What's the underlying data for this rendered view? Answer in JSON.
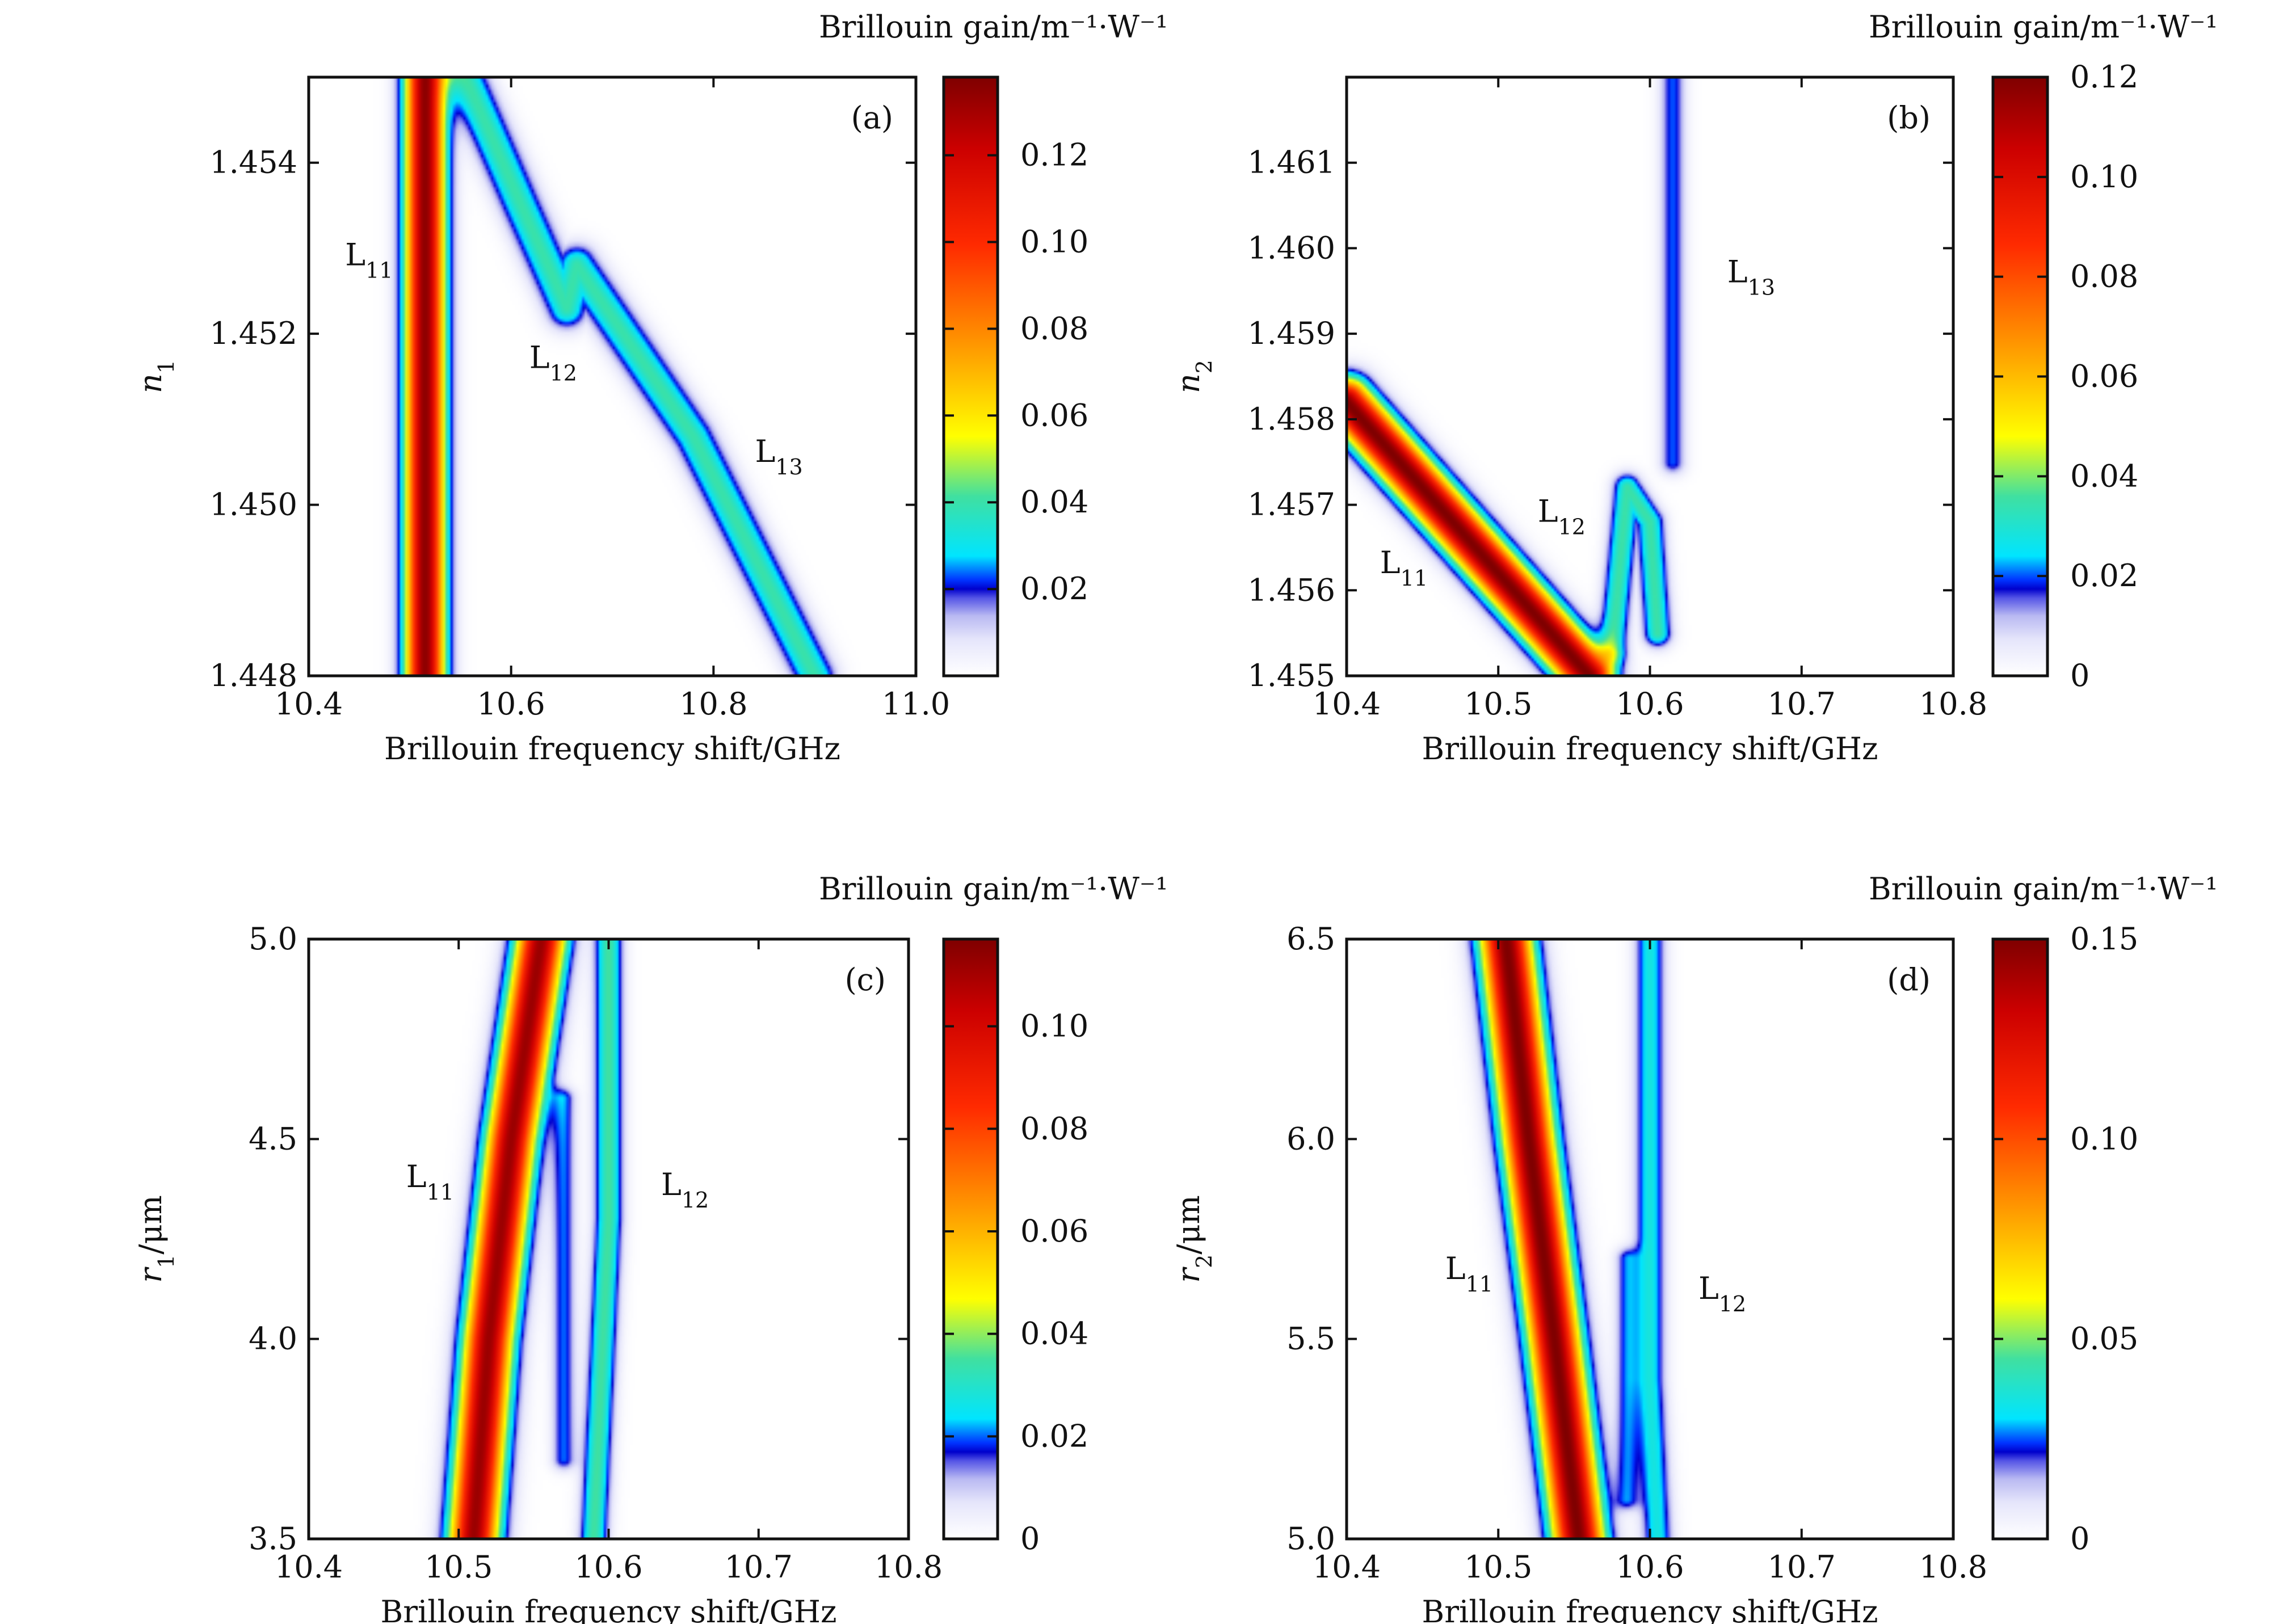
{
  "chart_data": [
    {
      "type": "heatmap",
      "panel_label": "(a)",
      "xlabel": "Brillouin frequency shift/GHz",
      "ylabel_main": "n",
      "ylabel_sub": "1",
      "xlim": [
        10.4,
        11.0
      ],
      "ylim": [
        1.448,
        1.455
      ],
      "x_ticks": [
        10.4,
        10.6,
        10.8,
        11.0
      ],
      "x_tick_labels": [
        "10.4",
        "10.6",
        "10.8",
        "11.0"
      ],
      "y_ticks": [
        1.448,
        1.45,
        1.452,
        1.454
      ],
      "y_tick_labels": [
        "1.448",
        "1.450",
        "1.452",
        "1.454"
      ],
      "colorbar": {
        "title": "Brillouin gain/m⁻¹·W⁻¹",
        "range": [
          0,
          0.138
        ],
        "ticks": [
          0.02,
          0.04,
          0.06,
          0.08,
          0.1,
          0.12
        ],
        "tick_labels": [
          "0.02",
          "0.04",
          "0.06",
          "0.08",
          "0.10",
          "0.12"
        ]
      },
      "modes": [
        {
          "label_main": "L",
          "label_sub": "11",
          "x": 10.436,
          "y": 1.4528
        },
        {
          "label_main": "L",
          "label_sub": "12",
          "x": 10.618,
          "y": 1.4516
        },
        {
          "label_main": "L",
          "label_sub": "13",
          "x": 10.841,
          "y": 1.4505
        }
      ],
      "bands": [
        {
          "points": [
            [
              10.515,
              1.448
            ],
            [
              10.515,
              1.455
            ]
          ],
          "peak": 0.135,
          "width": 0.03
        },
        {
          "points": [
            [
              10.555,
              1.455
            ],
            [
              10.61,
              1.4535
            ],
            [
              10.655,
              1.4523
            ],
            [
              10.665,
              1.4528
            ],
            [
              10.78,
              1.4508
            ],
            [
              10.9,
              1.448
            ]
          ],
          "peak": 0.04,
          "width": 0.03
        }
      ]
    },
    {
      "type": "heatmap",
      "panel_label": "(b)",
      "xlabel": "Brillouin frequency shift/GHz",
      "ylabel_main": "n",
      "ylabel_sub": "2",
      "xlim": [
        10.4,
        10.8
      ],
      "ylim": [
        1.455,
        1.462
      ],
      "x_ticks": [
        10.4,
        10.5,
        10.6,
        10.7,
        10.8
      ],
      "x_tick_labels": [
        "10.4",
        "10.5",
        "10.6",
        "10.7",
        "10.8"
      ],
      "y_ticks": [
        1.455,
        1.456,
        1.457,
        1.458,
        1.459,
        1.46,
        1.461
      ],
      "y_tick_labels": [
        "1.455",
        "1.456",
        "1.457",
        "1.458",
        "1.459",
        "1.460",
        "1.461"
      ],
      "colorbar": {
        "title": "Brillouin gain/m⁻¹·W⁻¹",
        "range": [
          0,
          0.12
        ],
        "ticks": [
          0,
          0.02,
          0.04,
          0.06,
          0.08,
          0.1,
          0.12
        ],
        "tick_labels": [
          "0",
          "0.02",
          "0.04",
          "0.06",
          "0.08",
          "0.10",
          "0.12"
        ]
      },
      "modes": [
        {
          "label_main": "L",
          "label_sub": "11",
          "x": 10.422,
          "y": 1.4562
        },
        {
          "label_main": "L",
          "label_sub": "12",
          "x": 10.526,
          "y": 1.4568
        },
        {
          "label_main": "L",
          "label_sub": "13",
          "x": 10.651,
          "y": 1.4596
        }
      ],
      "bands": [
        {
          "points": [
            [
              10.4,
              1.4582
            ],
            [
              10.56,
              1.455
            ]
          ],
          "peak": 0.12,
          "width": 0.024
        },
        {
          "points": [
            [
              10.575,
              1.4553
            ],
            [
              10.585,
              1.4572
            ],
            [
              10.6,
              1.4568
            ],
            [
              10.605,
              1.4555
            ]
          ],
          "peak": 0.035,
          "width": 0.014
        },
        {
          "points": [
            [
              10.615,
              1.462
            ],
            [
              10.615,
              1.4575
            ]
          ],
          "peak": 0.02,
          "width": 0.013
        }
      ]
    },
    {
      "type": "heatmap",
      "panel_label": "(c)",
      "xlabel": "Brillouin frequency shift/GHz",
      "ylabel_main": "r",
      "ylabel_sub": "1",
      "ylabel_unit": "/μm",
      "xlim": [
        10.4,
        10.8
      ],
      "ylim": [
        3.5,
        5.0
      ],
      "x_ticks": [
        10.4,
        10.5,
        10.6,
        10.7,
        10.8
      ],
      "x_tick_labels": [
        "10.4",
        "10.5",
        "10.6",
        "10.7",
        "10.8"
      ],
      "y_ticks": [
        3.5,
        4.0,
        4.5,
        5.0
      ],
      "y_tick_labels": [
        "3.5",
        "4.0",
        "4.5",
        "5.0"
      ],
      "colorbar": {
        "title": "Brillouin gain/m⁻¹·W⁻¹",
        "range": [
          0,
          0.117
        ],
        "ticks": [
          0,
          0.02,
          0.04,
          0.06,
          0.08,
          0.1
        ],
        "tick_labels": [
          "0",
          "0.02",
          "0.04",
          "0.06",
          "0.08",
          "0.10"
        ]
      },
      "modes": [
        {
          "label_main": "L",
          "label_sub": "11",
          "x": 10.465,
          "y": 4.38
        },
        {
          "label_main": "L",
          "label_sub": "12",
          "x": 10.635,
          "y": 4.36
        }
      ],
      "bands": [
        {
          "points": [
            [
              10.51,
              3.5
            ],
            [
              10.52,
              4.0
            ],
            [
              10.535,
              4.5
            ],
            [
              10.555,
              5.0
            ]
          ],
          "peak": 0.112,
          "width": 0.025
        },
        {
          "points": [
            [
              10.59,
              3.5
            ],
            [
              10.6,
              4.3
            ],
            [
              10.6,
              5.0
            ]
          ],
          "peak": 0.035,
          "width": 0.014
        },
        {
          "points": [
            [
              10.57,
              3.7
            ],
            [
              10.57,
              4.6
            ]
          ],
          "peak": 0.02,
          "width": 0.012
        }
      ]
    },
    {
      "type": "heatmap",
      "panel_label": "(d)",
      "xlabel": "Brillouin frequency shift/GHz",
      "ylabel_main": "r",
      "ylabel_sub": "2",
      "ylabel_unit": "/μm",
      "xlim": [
        10.4,
        10.8
      ],
      "ylim": [
        5.0,
        6.5
      ],
      "x_ticks": [
        10.4,
        10.5,
        10.6,
        10.7,
        10.8
      ],
      "x_tick_labels": [
        "10.4",
        "10.5",
        "10.6",
        "10.7",
        "10.8"
      ],
      "y_ticks": [
        5.0,
        5.5,
        6.0,
        6.5
      ],
      "y_tick_labels": [
        "5.0",
        "5.5",
        "6.0",
        "6.5"
      ],
      "colorbar": {
        "title": "Brillouin gain/m⁻¹·W⁻¹",
        "range": [
          0,
          0.15
        ],
        "ticks": [
          0,
          0.05,
          0.1,
          0.15
        ],
        "tick_labels": [
          "0",
          "0.05",
          "0.10",
          "0.15"
        ]
      },
      "modes": [
        {
          "label_main": "L",
          "label_sub": "11",
          "x": 10.465,
          "y": 5.65
        },
        {
          "label_main": "L",
          "label_sub": "12",
          "x": 10.632,
          "y": 5.6
        }
      ],
      "bands": [
        {
          "points": [
            [
              10.505,
              6.5
            ],
            [
              10.52,
              6.0
            ],
            [
              10.537,
              5.5
            ],
            [
              10.553,
              5.0
            ]
          ],
          "peak": 0.15,
          "width": 0.026
        },
        {
          "points": [
            [
              10.6,
              6.5
            ],
            [
              10.6,
              5.4
            ],
            [
              10.605,
              5.0
            ]
          ],
          "peak": 0.035,
          "width": 0.015
        },
        {
          "points": [
            [
              10.585,
              5.7
            ],
            [
              10.585,
              5.1
            ]
          ],
          "peak": 0.025,
          "width": 0.012
        }
      ]
    }
  ]
}
